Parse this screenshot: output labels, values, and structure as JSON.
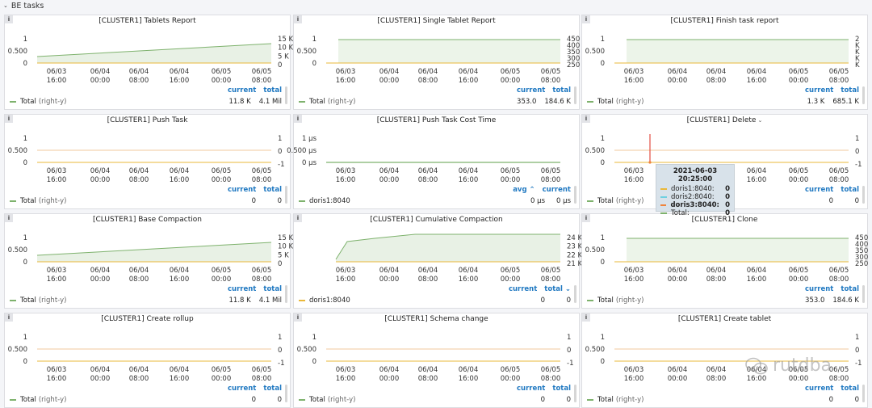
{
  "row": {
    "title": "BE tasks"
  },
  "colors": {
    "green": "#7eb26d",
    "orange": "#eab839",
    "blue": "#6ed0e0",
    "red": "#ef843c",
    "link": "#1f78c1"
  },
  "times": [
    "06/03",
    "06/04",
    "06/04",
    "06/04",
    "06/05",
    "06/05"
  ],
  "hours": [
    "16:00",
    "00:00",
    "08:00",
    "16:00",
    "00:00",
    "08:00"
  ],
  "panels": [
    {
      "title": "[CLUSTER1] Tablets Report",
      "left_ticks": [
        "1",
        "0.500",
        "0"
      ],
      "right_ticks": [
        "15 K",
        "10 K",
        "5 K",
        "0"
      ],
      "shape": "ramp",
      "headers": [
        "current",
        "total"
      ],
      "legend": {
        "name": "Total",
        "sub": "(right-y)",
        "color": "#7eb26d",
        "values": [
          "11.8 K",
          "4.1 Mil"
        ]
      }
    },
    {
      "title": "[CLUSTER1] Single Tablet Report",
      "left_ticks": [
        "1",
        "0.500",
        "0"
      ],
      "right_ticks": [
        "450",
        "400",
        "350",
        "300",
        "250"
      ],
      "shape": "flatfill",
      "headers": [
        "current",
        "total"
      ],
      "legend": {
        "name": "Total",
        "sub": "(right-y)",
        "color": "#7eb26d",
        "values": [
          "353.0",
          "184.6 K"
        ]
      }
    },
    {
      "title": "[CLUSTER1] Finish task report",
      "left_ticks": [
        "1",
        "0.500",
        "0"
      ],
      "right_ticks": [
        "2",
        "K",
        "K",
        "K",
        "K"
      ],
      "shape": "flatfill",
      "headers": [
        "current",
        "total"
      ],
      "legend": {
        "name": "Total",
        "sub": "(right-y)",
        "color": "#7eb26d",
        "values": [
          "1.3 K",
          "685.1 K"
        ]
      }
    },
    {
      "title": "[CLUSTER1] Push Task",
      "left_ticks": [
        "1",
        "0.500",
        "0"
      ],
      "right_ticks": [
        "1",
        "0",
        "-1"
      ],
      "shape": "flat",
      "headers": [
        "current",
        "total"
      ],
      "legend": {
        "name": "Total",
        "sub": "(right-y)",
        "color": "#7eb26d",
        "values": [
          "0",
          "0"
        ]
      }
    },
    {
      "title": "[CLUSTER1] Push Task Cost Time",
      "left_ticks": [
        "1 µs",
        "0.500 µs",
        "0 µs"
      ],
      "right_ticks": [],
      "shape": "flatbottom",
      "headers": [
        "avg ⌃",
        "current"
      ],
      "legend": {
        "name": "doris1:8040",
        "sub": "",
        "color": "#7eb26d",
        "values": [
          "0 µs",
          "0 µs"
        ]
      }
    },
    {
      "title": "[CLUSTER1] Delete",
      "caret": true,
      "left_ticks": [
        "1",
        "0.500",
        "0"
      ],
      "right_ticks": [
        "1",
        "0",
        "-1"
      ],
      "shape": "delete",
      "headers": [
        "current",
        "total"
      ],
      "legend": {
        "name": "Total",
        "sub": "(right-y)",
        "color": "#7eb26d",
        "values": [
          "0",
          "0"
        ]
      }
    },
    {
      "title": "[CLUSTER1] Base Compaction",
      "left_ticks": [
        "1",
        "0.500",
        "0"
      ],
      "right_ticks": [
        "15 K",
        "10 K",
        "5 K",
        "0"
      ],
      "shape": "ramp",
      "headers": [
        "current",
        "total"
      ],
      "legend": {
        "name": "Total",
        "sub": "(right-y)",
        "color": "#7eb26d",
        "values": [
          "11.8 K",
          "4.1 Mil"
        ]
      }
    },
    {
      "title": "[CLUSTER1] Cumulative Compaction",
      "left_ticks": [],
      "right_ticks": [
        "24 K",
        "23 K",
        "22 K",
        "21 K"
      ],
      "shape": "cumul",
      "headers": [
        "current",
        "total ⌄"
      ],
      "legend": {
        "name": "doris1:8040",
        "sub": "",
        "color": "#eab839",
        "values": [
          "0",
          "0"
        ]
      }
    },
    {
      "title": "[CLUSTER1] Clone",
      "left_ticks": [
        "1",
        "0.500",
        "0"
      ],
      "right_ticks": [
        "450",
        "400",
        "350",
        "300",
        "250"
      ],
      "shape": "flatfill",
      "headers": [
        "current",
        "total"
      ],
      "legend": {
        "name": "Total",
        "sub": "(right-y)",
        "color": "#7eb26d",
        "values": [
          "353.0",
          "184.6 K"
        ]
      }
    },
    {
      "title": "[CLUSTER1] Create rollup",
      "left_ticks": [
        "1",
        "0.500",
        "0"
      ],
      "right_ticks": [
        "1",
        "0",
        "-1"
      ],
      "shape": "flat",
      "headers": [
        "current",
        "total"
      ],
      "legend": {
        "name": "Total",
        "sub": "(right-y)",
        "color": "#7eb26d",
        "values": [
          "0",
          "0"
        ]
      }
    },
    {
      "title": "[CLUSTER1] Schema change",
      "left_ticks": [
        "1",
        "0.500",
        "0"
      ],
      "right_ticks": [
        "1",
        "0",
        "-1"
      ],
      "shape": "flat",
      "headers": [
        "current",
        "total"
      ],
      "legend": {
        "name": "Total",
        "sub": "(right-y)",
        "color": "#7eb26d",
        "values": [
          "0",
          "0"
        ]
      }
    },
    {
      "title": "[CLUSTER1] Create tablet",
      "left_ticks": [
        "1",
        "0.500",
        "0"
      ],
      "right_ticks": [
        "1",
        "0",
        "-1"
      ],
      "shape": "flat",
      "headers": [
        "current",
        "total"
      ],
      "legend": {
        "name": "Total",
        "sub": "(right-y)",
        "color": "#7eb26d",
        "values": [
          "0",
          "0"
        ]
      }
    }
  ],
  "tooltip": {
    "time": "2021-06-03 20:25:00",
    "rows": [
      {
        "name": "doris1:8040:",
        "value": "0",
        "color": "#eab839"
      },
      {
        "name": "doris2:8040:",
        "value": "0",
        "color": "#6ed0e0"
      },
      {
        "name": "doris3:8040:",
        "value": "0",
        "color": "#ef843c",
        "bold": true
      },
      {
        "name": "Total:",
        "value": "0",
        "color": "#7eb26d"
      }
    ]
  },
  "watermark": {
    "text": "rutdba"
  }
}
